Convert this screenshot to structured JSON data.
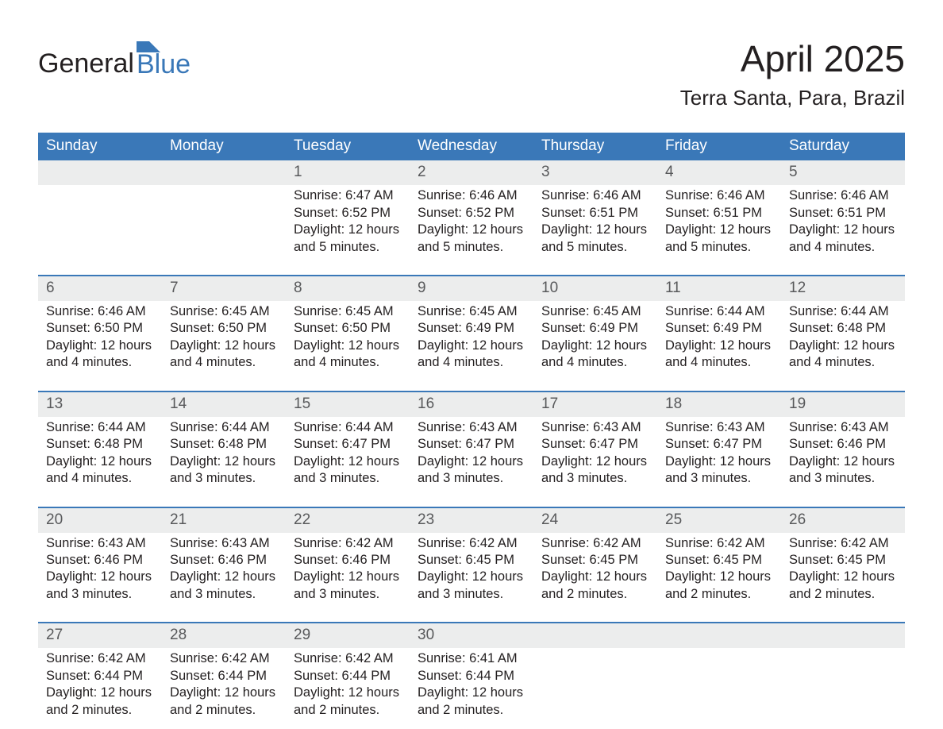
{
  "logo": {
    "left": "General",
    "right": "Blue",
    "right_color": "#3a78b8",
    "flag_color": "#3a78b8"
  },
  "title": "April 2025",
  "location": "Terra Santa, Para, Brazil",
  "colors": {
    "header_bg": "#3a78b8",
    "header_text": "#ffffff",
    "daynum_bg": "#eceded",
    "daynum_text": "#58595b",
    "body_text": "#231f20",
    "week_sep": "#3a78b8",
    "page_bg": "#ffffff"
  },
  "day_headers": [
    "Sunday",
    "Monday",
    "Tuesday",
    "Wednesday",
    "Thursday",
    "Friday",
    "Saturday"
  ],
  "weeks": [
    [
      null,
      null,
      {
        "n": "1",
        "sr": "6:47 AM",
        "ss": "6:52 PM",
        "dl": "12 hours and 5 minutes."
      },
      {
        "n": "2",
        "sr": "6:46 AM",
        "ss": "6:52 PM",
        "dl": "12 hours and 5 minutes."
      },
      {
        "n": "3",
        "sr": "6:46 AM",
        "ss": "6:51 PM",
        "dl": "12 hours and 5 minutes."
      },
      {
        "n": "4",
        "sr": "6:46 AM",
        "ss": "6:51 PM",
        "dl": "12 hours and 5 minutes."
      },
      {
        "n": "5",
        "sr": "6:46 AM",
        "ss": "6:51 PM",
        "dl": "12 hours and 4 minutes."
      }
    ],
    [
      {
        "n": "6",
        "sr": "6:46 AM",
        "ss": "6:50 PM",
        "dl": "12 hours and 4 minutes."
      },
      {
        "n": "7",
        "sr": "6:45 AM",
        "ss": "6:50 PM",
        "dl": "12 hours and 4 minutes."
      },
      {
        "n": "8",
        "sr": "6:45 AM",
        "ss": "6:50 PM",
        "dl": "12 hours and 4 minutes."
      },
      {
        "n": "9",
        "sr": "6:45 AM",
        "ss": "6:49 PM",
        "dl": "12 hours and 4 minutes."
      },
      {
        "n": "10",
        "sr": "6:45 AM",
        "ss": "6:49 PM",
        "dl": "12 hours and 4 minutes."
      },
      {
        "n": "11",
        "sr": "6:44 AM",
        "ss": "6:49 PM",
        "dl": "12 hours and 4 minutes."
      },
      {
        "n": "12",
        "sr": "6:44 AM",
        "ss": "6:48 PM",
        "dl": "12 hours and 4 minutes."
      }
    ],
    [
      {
        "n": "13",
        "sr": "6:44 AM",
        "ss": "6:48 PM",
        "dl": "12 hours and 4 minutes."
      },
      {
        "n": "14",
        "sr": "6:44 AM",
        "ss": "6:48 PM",
        "dl": "12 hours and 3 minutes."
      },
      {
        "n": "15",
        "sr": "6:44 AM",
        "ss": "6:47 PM",
        "dl": "12 hours and 3 minutes."
      },
      {
        "n": "16",
        "sr": "6:43 AM",
        "ss": "6:47 PM",
        "dl": "12 hours and 3 minutes."
      },
      {
        "n": "17",
        "sr": "6:43 AM",
        "ss": "6:47 PM",
        "dl": "12 hours and 3 minutes."
      },
      {
        "n": "18",
        "sr": "6:43 AM",
        "ss": "6:47 PM",
        "dl": "12 hours and 3 minutes."
      },
      {
        "n": "19",
        "sr": "6:43 AM",
        "ss": "6:46 PM",
        "dl": "12 hours and 3 minutes."
      }
    ],
    [
      {
        "n": "20",
        "sr": "6:43 AM",
        "ss": "6:46 PM",
        "dl": "12 hours and 3 minutes."
      },
      {
        "n": "21",
        "sr": "6:43 AM",
        "ss": "6:46 PM",
        "dl": "12 hours and 3 minutes."
      },
      {
        "n": "22",
        "sr": "6:42 AM",
        "ss": "6:46 PM",
        "dl": "12 hours and 3 minutes."
      },
      {
        "n": "23",
        "sr": "6:42 AM",
        "ss": "6:45 PM",
        "dl": "12 hours and 3 minutes."
      },
      {
        "n": "24",
        "sr": "6:42 AM",
        "ss": "6:45 PM",
        "dl": "12 hours and 2 minutes."
      },
      {
        "n": "25",
        "sr": "6:42 AM",
        "ss": "6:45 PM",
        "dl": "12 hours and 2 minutes."
      },
      {
        "n": "26",
        "sr": "6:42 AM",
        "ss": "6:45 PM",
        "dl": "12 hours and 2 minutes."
      }
    ],
    [
      {
        "n": "27",
        "sr": "6:42 AM",
        "ss": "6:44 PM",
        "dl": "12 hours and 2 minutes."
      },
      {
        "n": "28",
        "sr": "6:42 AM",
        "ss": "6:44 PM",
        "dl": "12 hours and 2 minutes."
      },
      {
        "n": "29",
        "sr": "6:42 AM",
        "ss": "6:44 PM",
        "dl": "12 hours and 2 minutes."
      },
      {
        "n": "30",
        "sr": "6:41 AM",
        "ss": "6:44 PM",
        "dl": "12 hours and 2 minutes."
      },
      null,
      null,
      null
    ]
  ],
  "labels": {
    "sunrise": "Sunrise:",
    "sunset": "Sunset:",
    "daylight": "Daylight:"
  }
}
